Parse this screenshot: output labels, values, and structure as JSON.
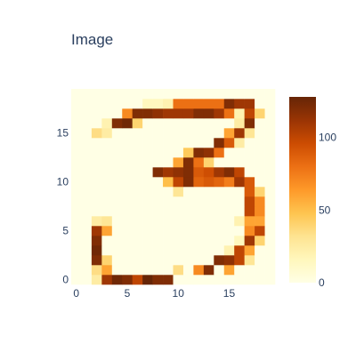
{
  "chart_data": {
    "type": "heatmap",
    "title": "Image",
    "xlabel": "",
    "ylabel": "",
    "x_ticks": [
      0,
      5,
      10,
      15
    ],
    "y_ticks": [
      0,
      5,
      10,
      15
    ],
    "xlim": [
      -0.5,
      19.5
    ],
    "ylim": [
      -0.5,
      19.5
    ],
    "colorscale": "YlOrBr",
    "colorscale_stops": [
      "#ffffe5",
      "#fff7bc",
      "#fee391",
      "#fec44f",
      "#fe9929",
      "#ec7014",
      "#cc4c02",
      "#993404",
      "#662506"
    ],
    "zmin": 0,
    "zmax": 128,
    "colorbar": {
      "ticks": [
        0,
        50,
        100
      ]
    },
    "grid": false,
    "legend": "none",
    "z": [
      [
        0,
        0,
        25,
        110,
        125,
        120,
        100,
        128,
        120,
        120,
        0,
        0,
        0,
        0,
        0,
        0,
        0,
        0,
        0,
        0
      ],
      [
        0,
        0,
        35,
        60,
        0,
        0,
        0,
        0,
        0,
        0,
        35,
        0,
        70,
        120,
        0,
        60,
        0,
        0,
        0,
        0
      ],
      [
        0,
        0,
        120,
        40,
        0,
        0,
        0,
        0,
        0,
        0,
        0,
        0,
        0,
        0,
        120,
        115,
        100,
        30,
        0,
        0
      ],
      [
        0,
        0,
        125,
        0,
        0,
        0,
        0,
        0,
        0,
        0,
        0,
        0,
        0,
        0,
        0,
        20,
        100,
        60,
        0,
        0
      ],
      [
        0,
        0,
        120,
        0,
        0,
        0,
        0,
        0,
        0,
        0,
        0,
        0,
        0,
        0,
        0,
        0,
        15,
        110,
        40,
        0
      ],
      [
        0,
        0,
        110,
        60,
        0,
        0,
        0,
        0,
        0,
        0,
        0,
        0,
        0,
        0,
        0,
        0,
        0,
        70,
        100,
        0
      ],
      [
        0,
        0,
        25,
        30,
        0,
        0,
        0,
        0,
        0,
        0,
        0,
        0,
        0,
        0,
        0,
        0,
        20,
        60,
        60,
        0
      ],
      [
        0,
        0,
        0,
        0,
        0,
        0,
        0,
        0,
        0,
        0,
        0,
        0,
        0,
        0,
        0,
        0,
        0,
        100,
        70,
        0
      ],
      [
        0,
        0,
        0,
        0,
        0,
        0,
        0,
        0,
        0,
        0,
        0,
        0,
        0,
        0,
        0,
        0,
        0,
        100,
        70,
        0
      ],
      [
        0,
        0,
        0,
        0,
        0,
        0,
        0,
        0,
        0,
        0,
        30,
        0,
        0,
        0,
        0,
        0,
        0,
        90,
        40,
        0
      ],
      [
        0,
        0,
        0,
        0,
        0,
        0,
        0,
        0,
        0,
        50,
        100,
        120,
        85,
        90,
        85,
        75,
        110,
        90,
        0,
        0
      ],
      [
        0,
        0,
        0,
        0,
        0,
        0,
        0,
        0,
        120,
        110,
        115,
        120,
        90,
        95,
        110,
        120,
        100,
        0,
        0,
        0
      ],
      [
        0,
        0,
        0,
        0,
        0,
        0,
        0,
        0,
        0,
        0,
        60,
        120,
        80,
        40,
        0,
        0,
        0,
        0,
        0,
        0
      ],
      [
        0,
        0,
        0,
        0,
        0,
        0,
        0,
        0,
        0,
        0,
        0,
        45,
        120,
        115,
        80,
        0,
        0,
        0,
        0,
        0
      ],
      [
        0,
        0,
        0,
        0,
        0,
        0,
        0,
        0,
        0,
        0,
        0,
        0,
        0,
        0,
        120,
        90,
        25,
        0,
        0,
        0
      ],
      [
        0,
        0,
        35,
        25,
        0,
        0,
        0,
        0,
        0,
        0,
        0,
        0,
        0,
        0,
        0,
        60,
        110,
        30,
        0,
        0
      ],
      [
        0,
        0,
        0,
        20,
        120,
        125,
        40,
        0,
        0,
        0,
        0,
        0,
        0,
        0,
        0,
        0,
        25,
        120,
        0,
        0
      ],
      [
        0,
        0,
        0,
        0,
        0,
        70,
        120,
        120,
        115,
        110,
        110,
        110,
        120,
        120,
        110,
        80,
        20,
        100,
        40,
        0
      ],
      [
        0,
        0,
        0,
        0,
        0,
        0,
        0,
        15,
        15,
        20,
        80,
        80,
        80,
        80,
        80,
        120,
        110,
        110,
        0,
        0
      ],
      [
        0,
        0,
        0,
        0,
        0,
        0,
        0,
        0,
        0,
        0,
        0,
        0,
        0,
        0,
        0,
        0,
        0,
        0,
        0,
        0
      ]
    ]
  }
}
